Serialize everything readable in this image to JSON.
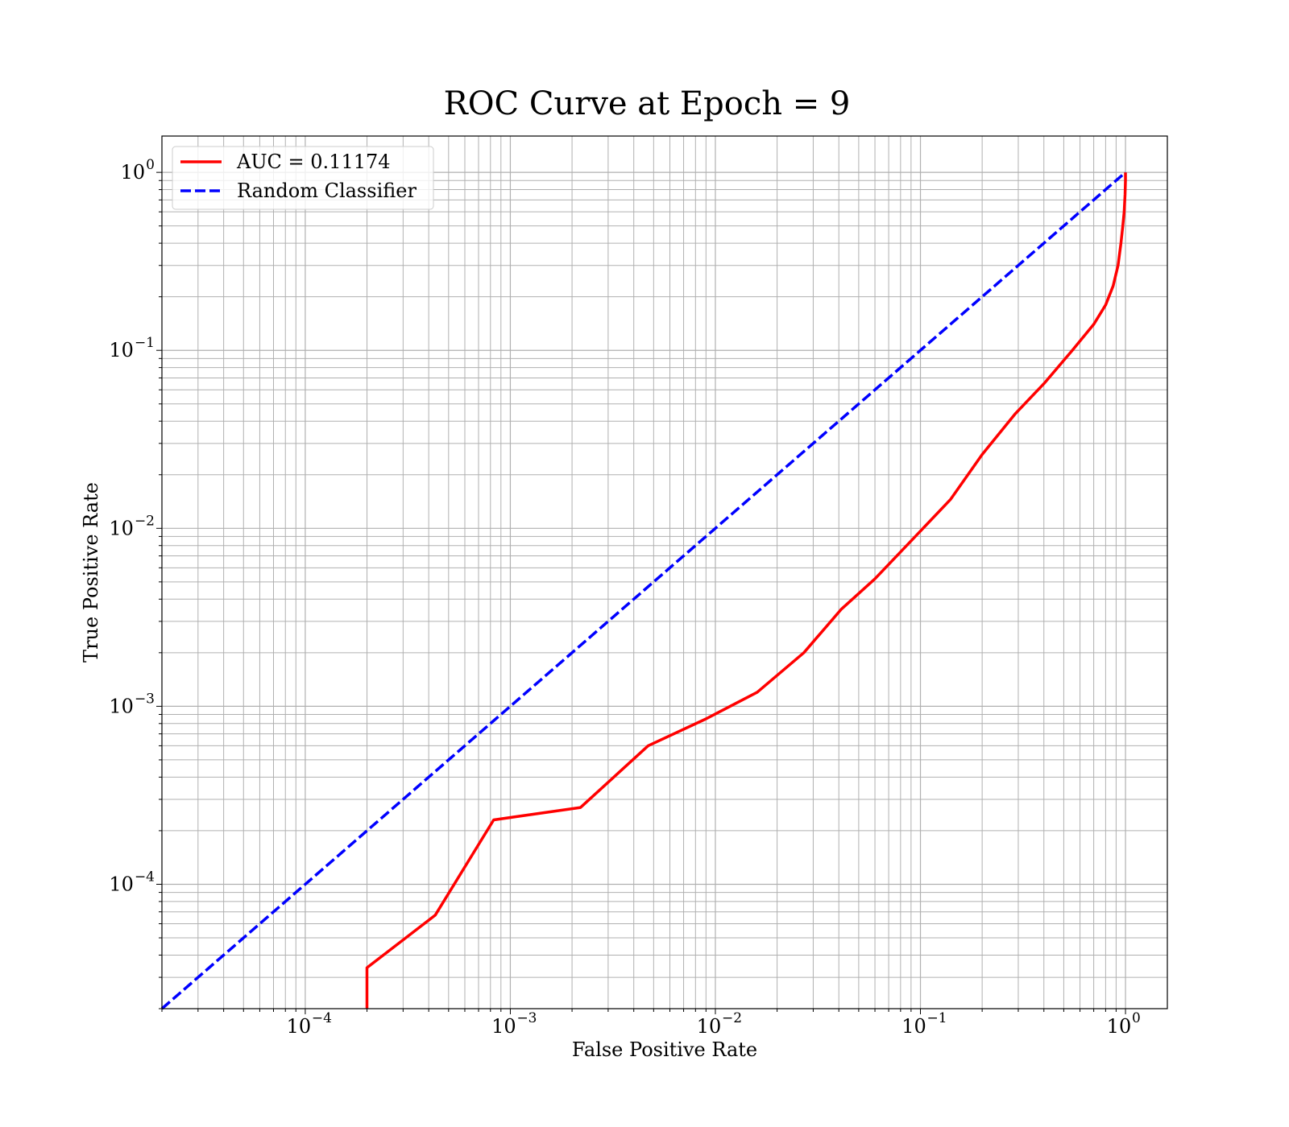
{
  "chart_data": {
    "type": "line",
    "title": "ROC Curve at Epoch = 9",
    "xlabel": "False Positive Rate",
    "ylabel": "True Positive Rate",
    "xscale": "log",
    "yscale": "log",
    "xlim": [
      2e-05,
      1.6
    ],
    "ylim": [
      2e-05,
      1.6
    ],
    "xticks": [
      {
        "value": 0.0001,
        "base": "10",
        "exp": "−4"
      },
      {
        "value": 0.001,
        "base": "10",
        "exp": "−3"
      },
      {
        "value": 0.01,
        "base": "10",
        "exp": "−2"
      },
      {
        "value": 0.1,
        "base": "10",
        "exp": "−1"
      },
      {
        "value": 1,
        "base": "10",
        "exp": "0"
      }
    ],
    "yticks": [
      {
        "value": 0.0001,
        "base": "10",
        "exp": "−4"
      },
      {
        "value": 0.001,
        "base": "10",
        "exp": "−3"
      },
      {
        "value": 0.01,
        "base": "10",
        "exp": "−2"
      },
      {
        "value": 0.1,
        "base": "10",
        "exp": "−1"
      },
      {
        "value": 1,
        "base": "10",
        "exp": "0"
      }
    ],
    "grid": "major and minor",
    "legend": "upper-left",
    "series": [
      {
        "name": "AUC = 0.11174",
        "color": "#ff0000",
        "style": "solid",
        "x": [
          0.0002,
          0.0002,
          0.00043,
          0.00083,
          0.0022,
          0.0047,
          0.009,
          0.016,
          0.027,
          0.041,
          0.06,
          0.09,
          0.14,
          0.2,
          0.29,
          0.4,
          0.55,
          0.7,
          0.8,
          0.87,
          0.92,
          0.95,
          0.97,
          0.985,
          0.995,
          1.0,
          1.0
        ],
        "y": [
          2e-05,
          3.4e-05,
          6.7e-05,
          0.00023,
          0.00027,
          0.0006,
          0.00085,
          0.0012,
          0.002,
          0.0035,
          0.0052,
          0.0085,
          0.0145,
          0.026,
          0.044,
          0.065,
          0.1,
          0.14,
          0.18,
          0.23,
          0.3,
          0.4,
          0.5,
          0.6,
          0.75,
          0.9,
          1.0
        ]
      },
      {
        "name": "Random Classifier",
        "color": "#0000ff",
        "style": "dashed",
        "x": [
          2e-05,
          1.0
        ],
        "y": [
          2e-05,
          1.0
        ]
      }
    ]
  }
}
